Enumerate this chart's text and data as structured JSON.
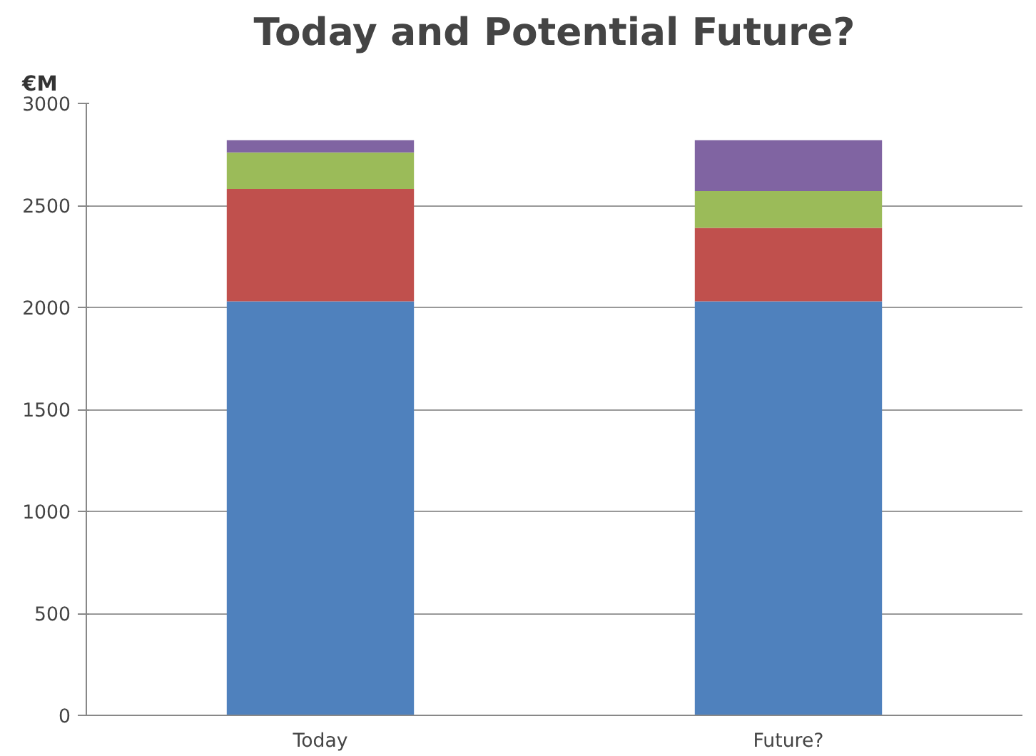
{
  "chart_data": {
    "type": "bar",
    "title": "Today and Potential Future?",
    "ylabel": "€M",
    "stacked": true,
    "categories": [
      "Today",
      "Future?"
    ],
    "series": [
      {
        "color": "#4f81bd",
        "values": [
          2030,
          2030
        ]
      },
      {
        "color": "#c0504d",
        "values": [
          550,
          360
        ]
      },
      {
        "color": "#9bbb59",
        "values": [
          180,
          180
        ]
      },
      {
        "color": "#8064a2",
        "values": [
          60,
          250
        ]
      }
    ],
    "ylim": [
      0,
      3000
    ],
    "yticks": [
      0,
      500,
      1000,
      1500,
      2000,
      2500,
      3000
    ],
    "grid": "y"
  }
}
